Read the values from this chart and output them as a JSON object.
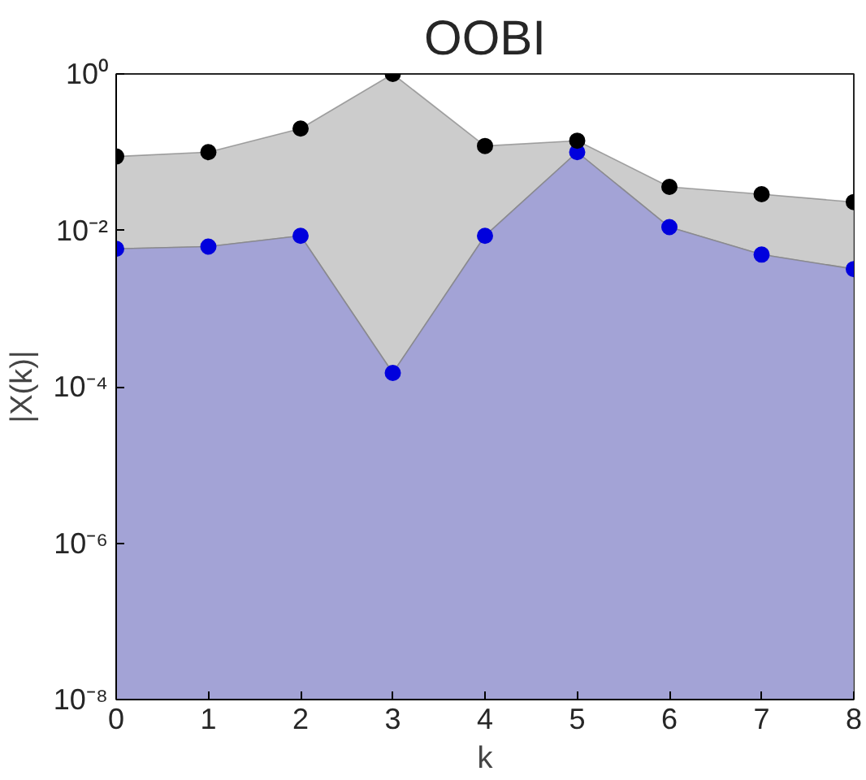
{
  "chart_data": {
    "type": "area",
    "title": "OOBI",
    "xlabel": "k",
    "ylabel": "|X(k)|",
    "x": [
      0,
      1,
      2,
      3,
      4,
      5,
      6,
      7,
      8
    ],
    "series": [
      {
        "color": "#a3a3d6",
        "values": [
          0.0058,
          0.0062,
          0.0085,
          0.00015,
          0.0085,
          0.1,
          0.011,
          0.0049,
          0.0032
        ]
      },
      {
        "color": "#cccccc",
        "values": [
          0.088,
          0.1,
          0.2,
          1.0,
          0.12,
          0.14,
          0.036,
          0.029,
          0.023
        ]
      },
      {
        "type": "scatter",
        "marker": "circle",
        "color": "#0000dd",
        "values": [
          0.0058,
          0.0062,
          0.0085,
          0.00015,
          0.0085,
          0.1,
          0.011,
          0.0049,
          0.0032
        ]
      },
      {
        "type": "scatter",
        "marker": "circle",
        "color": "#000000",
        "values": [
          0.088,
          0.1,
          0.2,
          1.0,
          0.12,
          0.14,
          0.036,
          0.029,
          0.023
        ]
      }
    ],
    "log": "y",
    "xlim": [
      0,
      8
    ],
    "xticks": [
      0,
      1,
      2,
      3,
      4,
      5,
      6,
      7,
      8
    ],
    "ylim": [
      1e-08,
      1
    ],
    "yticks": [
      {
        "value": 1e-08,
        "label": "10⁻⁸"
      },
      {
        "value": 1e-06,
        "label": "10⁻⁶"
      },
      {
        "value": 0.0001,
        "label": "10⁻⁴"
      },
      {
        "value": 0.01,
        "label": "10⁻²"
      },
      {
        "value": 1,
        "label": "10⁰"
      }
    ]
  }
}
